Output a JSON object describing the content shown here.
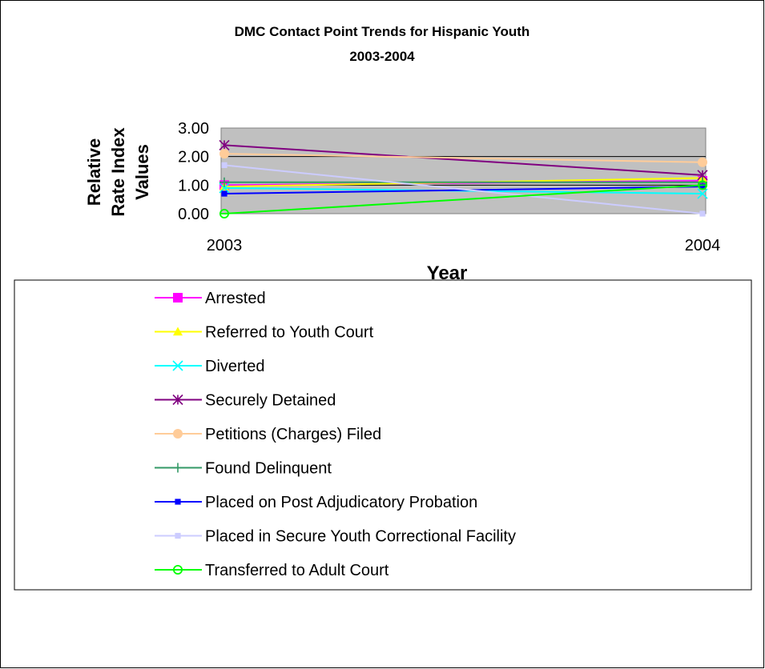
{
  "chart_data": {
    "type": "line",
    "title": "DMC Contact Point Trends for Hispanic Youth",
    "subtitle": "2003-2004",
    "xlabel": "Year",
    "ylabel": [
      "Relative",
      "Rate Index",
      "Values"
    ],
    "x": [
      "2003",
      "2004"
    ],
    "ylim": [
      0,
      3
    ],
    "yticks": [
      "0.00",
      "1.00",
      "2.00",
      "3.00"
    ],
    "grid": true,
    "legend_position": "bottom",
    "series": [
      {
        "name": "Arrested",
        "values": [
          1.0,
          1.15
        ],
        "color": "#FF00FF",
        "marker": "square"
      },
      {
        "name": "Referred to Youth Court",
        "values": [
          0.95,
          1.25
        ],
        "color": "#FFFF00",
        "marker": "triangle"
      },
      {
        "name": "Diverted",
        "values": [
          0.9,
          0.7
        ],
        "color": "#00FFFF",
        "marker": "x"
      },
      {
        "name": "Securely Detained",
        "values": [
          2.4,
          1.35
        ],
        "color": "#800080",
        "marker": "star"
      },
      {
        "name": "Petitions (Charges) Filed",
        "values": [
          2.1,
          1.8
        ],
        "color": "#FFCC99",
        "marker": "circle"
      },
      {
        "name": "Found Delinquent",
        "values": [
          1.1,
          1.1
        ],
        "color": "#339966",
        "marker": "plus"
      },
      {
        "name": "Placed on Post Adjudicatory Probation",
        "values": [
          0.7,
          0.95
        ],
        "color": "#0000FF",
        "marker": "smallsquare"
      },
      {
        "name": "Placed in Secure Youth Correctional Facility",
        "values": [
          1.7,
          0.0
        ],
        "color": "#CCCCFF",
        "marker": "smallsquare"
      },
      {
        "name": "Transferred to Adult Court",
        "values": [
          0.0,
          1.0
        ],
        "color": "#00FF00",
        "marker": "opencircle"
      }
    ]
  }
}
